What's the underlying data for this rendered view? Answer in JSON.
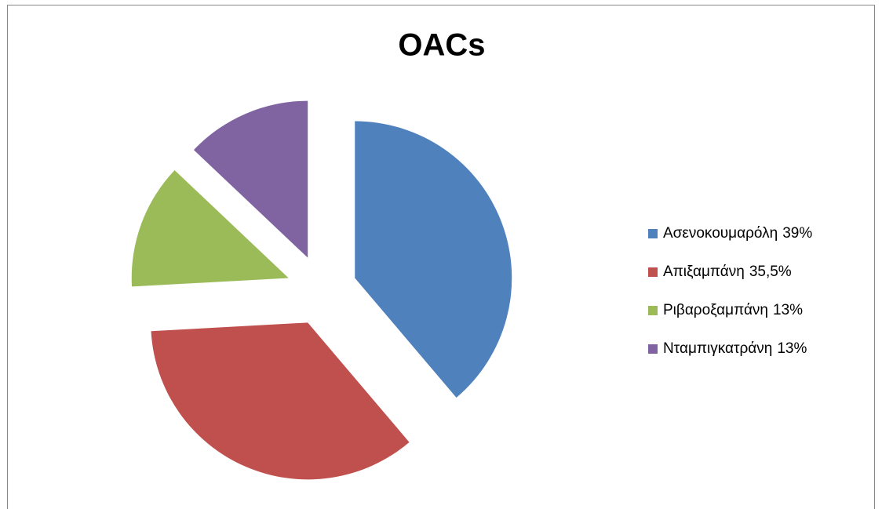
{
  "chart_data": {
    "type": "pie",
    "title": "OACs",
    "categories": [
      "Ασενοκουμαρόλη",
      "Απιξαμπάνη",
      "Ριβαροξαμπάνη",
      "Νταμπιγκατράνη"
    ],
    "values": [
      39,
      35.5,
      13,
      13
    ],
    "value_labels": [
      "39%",
      "35,5%",
      "13%",
      "13%"
    ],
    "colors": [
      "#4f81bd",
      "#c0504d",
      "#9bbb59",
      "#8064a2"
    ],
    "legend": "right"
  }
}
